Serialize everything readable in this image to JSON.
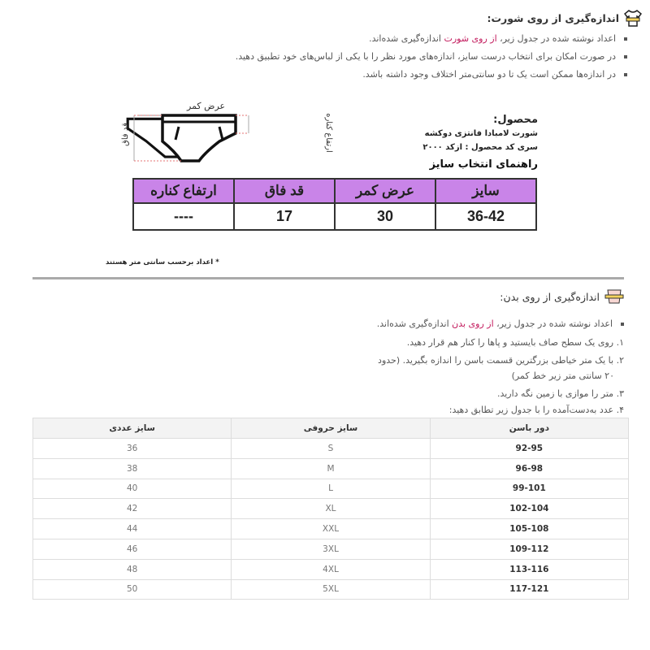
{
  "shorts_section": {
    "heading": "اندازه‌گیری از روی شورت:",
    "bullets": [
      {
        "before": "اعداد نوشته شده در جدول زیر، ",
        "highlight": "از روی شورت",
        "after": " اندازه‌گیری شده‌اند."
      },
      {
        "before": "در صورت امکان برای انتخاب درست سایز، اندازه‌های مورد نظر را با یکی از لباس‌های خود تطبیق دهید.",
        "highlight": "",
        "after": ""
      },
      {
        "before": "در اندازه‌ها ممکن است یک تا دو سانتی‌متر اختلاف وجود داشته باشد.",
        "highlight": "",
        "after": ""
      }
    ]
  },
  "diagram": {
    "waist_width": "عرض کمر",
    "crotch_length": "قد فاق",
    "side_height": "ارتفاع کناره"
  },
  "product": {
    "label": "محصول:",
    "name": "شورت لامبادا فانتزی دوکشه",
    "code": "سری کد محصول : ازکد ۲۰۰۰",
    "guide_title": "راهنمای انتخاب سایز"
  },
  "product_table": {
    "headers": [
      "سایز",
      "عرض کمر",
      "قد فاق",
      "ارتفاع کناره"
    ],
    "row": [
      "36-42",
      "30",
      "17",
      "----"
    ]
  },
  "footnote": "اعداد برحسب سانتی متر هستند",
  "body_section": {
    "heading": "اندازه‌گیری از روی بدن:",
    "bullet": {
      "before": "اعداد نوشته شده در جدول زیر، ",
      "highlight": "از روی بدن",
      "after": " اندازه‌گیری شده‌اند."
    },
    "steps": [
      "۱. روی یک سطح صاف بایستید و پاها را کنار هم قرار دهید.",
      "۲. با یک متر خیاطی بزرگترین قسمت باسن را اندازه بگیرید. (حدود",
      "۲۰ سانتی متر زیر خط کمر)",
      "۳. متر را موازی با زمین نگه دارید.",
      "۴. عدد به‌دست‌آمده را با جدول زیر تطابق دهید:"
    ]
  },
  "size_table": {
    "headers": [
      "دور باسن",
      "سایز حروفی",
      "سایز عددی"
    ],
    "rows": [
      [
        "92-95",
        "S",
        "36"
      ],
      [
        "96-98",
        "M",
        "38"
      ],
      [
        "99-101",
        "L",
        "40"
      ],
      [
        "102-104",
        "XL",
        "42"
      ],
      [
        "105-108",
        "XXL",
        "44"
      ],
      [
        "109-112",
        "3XL",
        "46"
      ],
      [
        "113-116",
        "4XL",
        "48"
      ],
      [
        "117-121",
        "5XL",
        "50"
      ]
    ]
  },
  "colors": {
    "highlight": "#c2185b",
    "table_header": "#c984e8"
  }
}
